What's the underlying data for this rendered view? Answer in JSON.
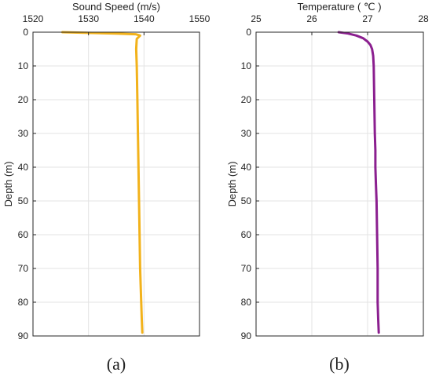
{
  "chart_data": [
    {
      "type": "line",
      "title": "",
      "xlabel": "Sound Speed (m/s)",
      "ylabel": "Depth (m)",
      "caption": "(a)",
      "xlim": [
        1520,
        1550
      ],
      "ylim": [
        0,
        90
      ],
      "y_reversed": true,
      "x_axis_position": "top",
      "grid": true,
      "x_ticks": [
        1520,
        1530,
        1540,
        1550
      ],
      "y_ticks": [
        0,
        10,
        20,
        30,
        40,
        50,
        60,
        70,
        80,
        90
      ],
      "color": "#f2b21b",
      "series": [
        {
          "x": [
            1525.3,
            1530.0,
            1535.0,
            1538.5,
            1539.3,
            1538.7,
            1538.6,
            1538.7,
            1538.8,
            1538.9,
            1539.0,
            1539.1,
            1539.2,
            1539.3,
            1539.4,
            1539.5,
            1539.6,
            1539.7
          ],
          "y": [
            0,
            0.2,
            0.4,
            0.6,
            1,
            2,
            5,
            10,
            20,
            30,
            40,
            50,
            60,
            70,
            75,
            80,
            85,
            89
          ]
        }
      ]
    },
    {
      "type": "line",
      "title": "",
      "xlabel": "Temperature ( ℃ )",
      "ylabel": "Depth (m)",
      "caption": "(b)",
      "xlim": [
        25,
        28
      ],
      "ylim": [
        0,
        90
      ],
      "y_reversed": true,
      "x_axis_position": "top",
      "grid": true,
      "x_ticks": [
        25,
        26,
        27,
        28
      ],
      "y_ticks": [
        0,
        10,
        20,
        30,
        40,
        50,
        60,
        70,
        80,
        90
      ],
      "color": "#8b1f8f",
      "series": [
        {
          "x": [
            26.48,
            26.65,
            26.8,
            26.92,
            27.0,
            27.05,
            27.08,
            27.1,
            27.11,
            27.12,
            27.13,
            27.14,
            27.14,
            27.15,
            27.16,
            27.17,
            27.18,
            27.18,
            27.18,
            27.19,
            27.2
          ],
          "y": [
            0,
            0.4,
            1,
            1.8,
            2.8,
            3.8,
            5,
            7,
            10,
            20,
            30,
            35,
            40,
            45,
            50,
            60,
            70,
            75,
            80,
            85,
            89
          ]
        }
      ]
    }
  ]
}
